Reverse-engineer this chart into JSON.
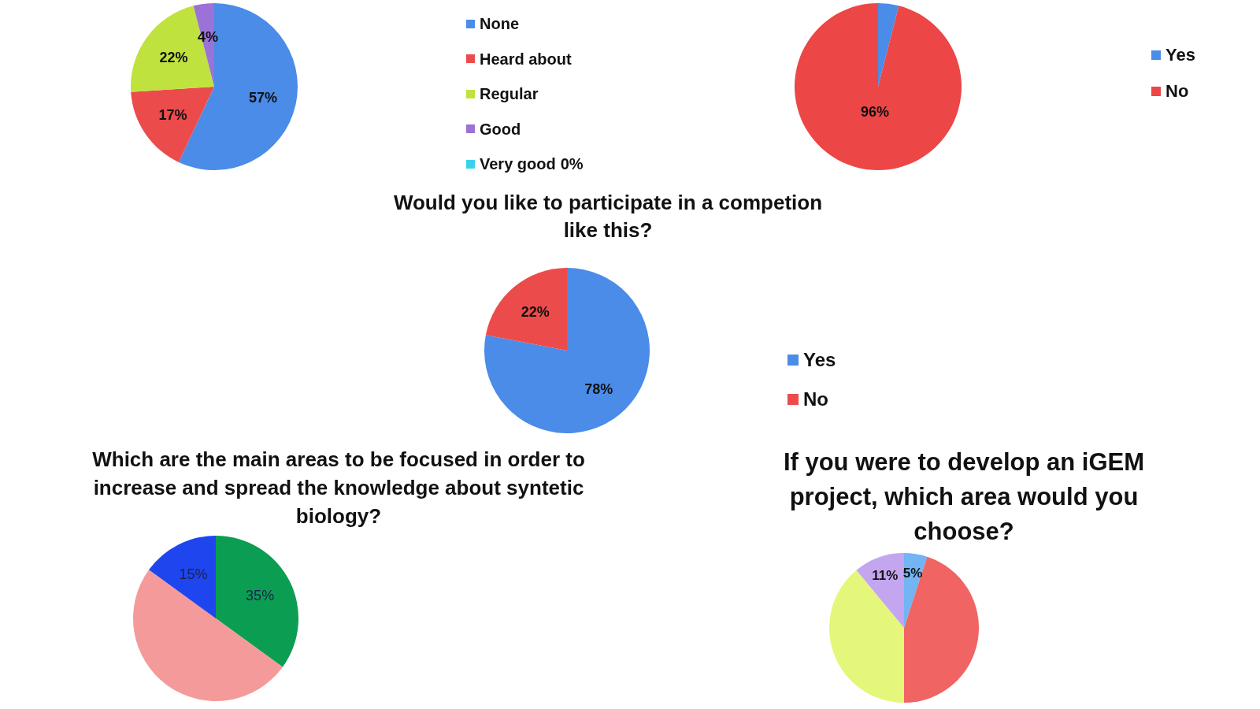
{
  "chart_data": [
    {
      "type": "pie",
      "categories": [
        "None",
        "Heard about",
        "Regular",
        "Good",
        "Very good"
      ],
      "values": [
        57,
        17,
        22,
        4,
        0
      ],
      "colors": [
        "#4a8ce8",
        "#ec4b4b",
        "#bfe23f",
        "#9b72d6",
        "#38d3ea"
      ],
      "value_labels": [
        "57%",
        "17%",
        "22%",
        "4%",
        "0%"
      ],
      "legend": "right"
    },
    {
      "type": "pie",
      "categories": [
        "Yes",
        "No"
      ],
      "values": [
        4,
        96
      ],
      "colors": [
        "#4a8ce8",
        "#ec4646"
      ],
      "value_labels": [
        null,
        "96%"
      ],
      "legend": "right"
    },
    {
      "type": "pie",
      "title": "Would you like to participate in a competion like this?",
      "categories": [
        "Yes",
        "No"
      ],
      "values": [
        78,
        22
      ],
      "colors": [
        "#4a8ce8",
        "#ec4b4b"
      ],
      "value_labels": [
        "78%",
        "22%"
      ],
      "legend": "right"
    },
    {
      "type": "pie",
      "title": "Which are the main areas to be focused in order to increase and spread the knowledge about syntetic biology?",
      "categories": [
        null,
        null,
        null
      ],
      "values": [
        35,
        50,
        15
      ],
      "colors": [
        "#0b9e52",
        "#f59a9a",
        "#1f45ee"
      ],
      "value_labels": [
        "35%",
        null,
        "15%"
      ]
    },
    {
      "type": "pie",
      "title": "If you were to develop an iGEM project, which area would you choose?",
      "categories": [
        null,
        null,
        null,
        null
      ],
      "values": [
        5,
        45,
        39,
        11
      ],
      "colors": [
        "#72b4f4",
        "#f06464",
        "#e4f77a",
        "#c4a6f0"
      ],
      "value_labels": [
        "5%",
        null,
        null,
        "11%"
      ]
    }
  ]
}
